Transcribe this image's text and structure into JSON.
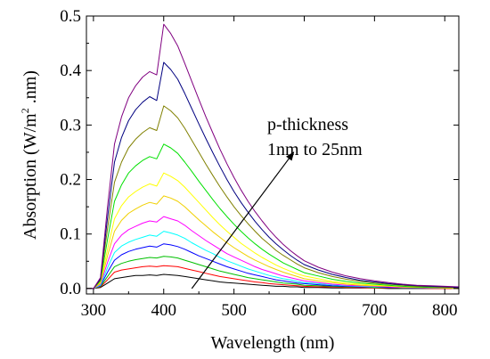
{
  "chart_data": {
    "type": "line",
    "title": "",
    "xlabel": "Wavelength (nm)",
    "ylabel_prefix": "Absorption (W/m",
    "ylabel_sup": "2",
    "ylabel_suffix": " .nm)",
    "xlim": [
      290,
      820
    ],
    "ylim": [
      -0.01,
      0.5
    ],
    "x_ticks": [
      300,
      400,
      500,
      600,
      700,
      800
    ],
    "y_ticks": [
      0.0,
      0.1,
      0.2,
      0.3,
      0.4,
      0.5
    ],
    "x_tick_labels": [
      "300",
      "400",
      "500",
      "600",
      "700",
      "800"
    ],
    "y_tick_labels": [
      "0.0",
      "0.1",
      "0.2",
      "0.3",
      "0.4",
      "0.5"
    ],
    "grid": false,
    "annotation": {
      "line1": "p-thickness",
      "line2": "1nm to 25nm",
      "arrow_from": [
        440,
        0.0
      ],
      "arrow_to": [
        585,
        0.25
      ]
    },
    "x": [
      290,
      300,
      310,
      320,
      330,
      340,
      350,
      360,
      370,
      380,
      390,
      400,
      410,
      420,
      430,
      440,
      450,
      460,
      470,
      480,
      490,
      500,
      510,
      520,
      530,
      540,
      550,
      560,
      570,
      580,
      590,
      600,
      620,
      640,
      660,
      680,
      700,
      720,
      740,
      760,
      780,
      800,
      820
    ],
    "series": [
      {
        "color": "#000000",
        "values": [
          0,
          0,
          0.002,
          0.01,
          0.018,
          0.02,
          0.022,
          0.024,
          0.024,
          0.025,
          0.024,
          0.026,
          0.025,
          0.024,
          0.022,
          0.02,
          0.018,
          0.016,
          0.014,
          0.012,
          0.011,
          0.01,
          0.009,
          0.008,
          0.007,
          0.006,
          0.005,
          0.004,
          0.004,
          0.003,
          0.003,
          0.002,
          0.002,
          0.001,
          0.001,
          0.001,
          0.001,
          0.0,
          0.0,
          0.0,
          0.0,
          0.0,
          0.0
        ]
      },
      {
        "color": "#ff0000",
        "values": [
          0,
          0,
          0.003,
          0.016,
          0.03,
          0.034,
          0.036,
          0.038,
          0.04,
          0.041,
          0.04,
          0.042,
          0.041,
          0.04,
          0.037,
          0.034,
          0.031,
          0.028,
          0.025,
          0.022,
          0.02,
          0.018,
          0.016,
          0.014,
          0.012,
          0.011,
          0.009,
          0.008,
          0.007,
          0.006,
          0.005,
          0.004,
          0.003,
          0.003,
          0.002,
          0.002,
          0.001,
          0.001,
          0.001,
          0.001,
          0.0,
          0.0,
          0.0
        ]
      },
      {
        "color": "#00c000",
        "values": [
          0,
          0,
          0.004,
          0.022,
          0.04,
          0.046,
          0.05,
          0.053,
          0.055,
          0.057,
          0.056,
          0.059,
          0.058,
          0.056,
          0.052,
          0.048,
          0.044,
          0.04,
          0.036,
          0.032,
          0.029,
          0.026,
          0.023,
          0.02,
          0.018,
          0.016,
          0.014,
          0.012,
          0.01,
          0.009,
          0.008,
          0.006,
          0.005,
          0.004,
          0.003,
          0.003,
          0.002,
          0.002,
          0.001,
          0.001,
          0.001,
          0.001,
          0.0
        ]
      },
      {
        "color": "#0000ff",
        "values": [
          0,
          0,
          0.005,
          0.03,
          0.052,
          0.062,
          0.068,
          0.072,
          0.075,
          0.078,
          0.076,
          0.082,
          0.08,
          0.077,
          0.072,
          0.066,
          0.06,
          0.055,
          0.05,
          0.045,
          0.04,
          0.036,
          0.032,
          0.028,
          0.025,
          0.022,
          0.019,
          0.016,
          0.014,
          0.012,
          0.01,
          0.009,
          0.007,
          0.005,
          0.004,
          0.003,
          0.003,
          0.002,
          0.002,
          0.001,
          0.001,
          0.001,
          0.0
        ]
      },
      {
        "color": "#00ffff",
        "values": [
          0,
          0,
          0.006,
          0.038,
          0.066,
          0.078,
          0.085,
          0.09,
          0.094,
          0.098,
          0.096,
          0.105,
          0.102,
          0.098,
          0.092,
          0.084,
          0.077,
          0.07,
          0.064,
          0.057,
          0.051,
          0.046,
          0.041,
          0.036,
          0.032,
          0.028,
          0.024,
          0.021,
          0.018,
          0.016,
          0.013,
          0.011,
          0.009,
          0.007,
          0.005,
          0.004,
          0.003,
          0.003,
          0.002,
          0.002,
          0.001,
          0.001,
          0.0
        ]
      },
      {
        "color": "#ff00ff",
        "values": [
          0,
          0,
          0.008,
          0.048,
          0.082,
          0.098,
          0.108,
          0.114,
          0.12,
          0.124,
          0.122,
          0.132,
          0.128,
          0.124,
          0.116,
          0.106,
          0.097,
          0.088,
          0.08,
          0.072,
          0.064,
          0.058,
          0.052,
          0.046,
          0.04,
          0.035,
          0.031,
          0.027,
          0.023,
          0.02,
          0.017,
          0.014,
          0.011,
          0.008,
          0.006,
          0.005,
          0.004,
          0.003,
          0.002,
          0.002,
          0.001,
          0.001,
          0.0
        ]
      },
      {
        "color": "#f0d000",
        "values": [
          0,
          0,
          0.01,
          0.06,
          0.105,
          0.125,
          0.138,
          0.146,
          0.153,
          0.158,
          0.155,
          0.17,
          0.166,
          0.16,
          0.15,
          0.138,
          0.126,
          0.115,
          0.104,
          0.094,
          0.084,
          0.075,
          0.067,
          0.059,
          0.052,
          0.046,
          0.04,
          0.035,
          0.03,
          0.026,
          0.022,
          0.018,
          0.014,
          0.011,
          0.008,
          0.006,
          0.005,
          0.004,
          0.003,
          0.002,
          0.002,
          0.001,
          0.0
        ]
      },
      {
        "color": "#ffff00",
        "values": [
          0,
          0,
          0.012,
          0.072,
          0.128,
          0.152,
          0.168,
          0.178,
          0.186,
          0.192,
          0.188,
          0.212,
          0.206,
          0.198,
          0.186,
          0.172,
          0.158,
          0.144,
          0.13,
          0.117,
          0.105,
          0.094,
          0.083,
          0.074,
          0.065,
          0.057,
          0.05,
          0.043,
          0.037,
          0.032,
          0.027,
          0.023,
          0.018,
          0.013,
          0.01,
          0.008,
          0.006,
          0.005,
          0.003,
          0.003,
          0.002,
          0.001,
          0.0
        ]
      },
      {
        "color": "#00e000",
        "values": [
          0,
          0,
          0.014,
          0.09,
          0.16,
          0.19,
          0.212,
          0.225,
          0.235,
          0.242,
          0.238,
          0.265,
          0.258,
          0.248,
          0.232,
          0.215,
          0.197,
          0.18,
          0.163,
          0.147,
          0.132,
          0.118,
          0.105,
          0.093,
          0.082,
          0.072,
          0.063,
          0.055,
          0.047,
          0.041,
          0.035,
          0.029,
          0.023,
          0.017,
          0.013,
          0.01,
          0.008,
          0.006,
          0.004,
          0.003,
          0.002,
          0.002,
          0.001
        ]
      },
      {
        "color": "#808000",
        "values": [
          0,
          0,
          0.016,
          0.11,
          0.195,
          0.232,
          0.258,
          0.274,
          0.286,
          0.295,
          0.29,
          0.335,
          0.326,
          0.313,
          0.294,
          0.272,
          0.25,
          0.228,
          0.207,
          0.187,
          0.168,
          0.15,
          0.134,
          0.119,
          0.105,
          0.092,
          0.081,
          0.07,
          0.061,
          0.053,
          0.045,
          0.038,
          0.029,
          0.022,
          0.017,
          0.013,
          0.01,
          0.008,
          0.006,
          0.004,
          0.003,
          0.002,
          0.001
        ]
      },
      {
        "color": "#000080",
        "values": [
          0,
          0,
          0.018,
          0.13,
          0.232,
          0.277,
          0.308,
          0.328,
          0.342,
          0.352,
          0.345,
          0.415,
          0.402,
          0.384,
          0.358,
          0.33,
          0.302,
          0.275,
          0.249,
          0.224,
          0.2,
          0.178,
          0.158,
          0.14,
          0.123,
          0.108,
          0.094,
          0.082,
          0.071,
          0.061,
          0.052,
          0.044,
          0.034,
          0.026,
          0.02,
          0.015,
          0.012,
          0.009,
          0.007,
          0.005,
          0.004,
          0.003,
          0.002
        ]
      },
      {
        "color": "#800080",
        "values": [
          0,
          0,
          0.02,
          0.15,
          0.265,
          0.315,
          0.35,
          0.372,
          0.388,
          0.398,
          0.392,
          0.485,
          0.468,
          0.445,
          0.413,
          0.38,
          0.347,
          0.315,
          0.285,
          0.256,
          0.229,
          0.204,
          0.181,
          0.16,
          0.141,
          0.124,
          0.108,
          0.094,
          0.081,
          0.07,
          0.06,
          0.051,
          0.039,
          0.03,
          0.023,
          0.018,
          0.014,
          0.011,
          0.008,
          0.006,
          0.005,
          0.004,
          0.003
        ]
      }
    ]
  }
}
